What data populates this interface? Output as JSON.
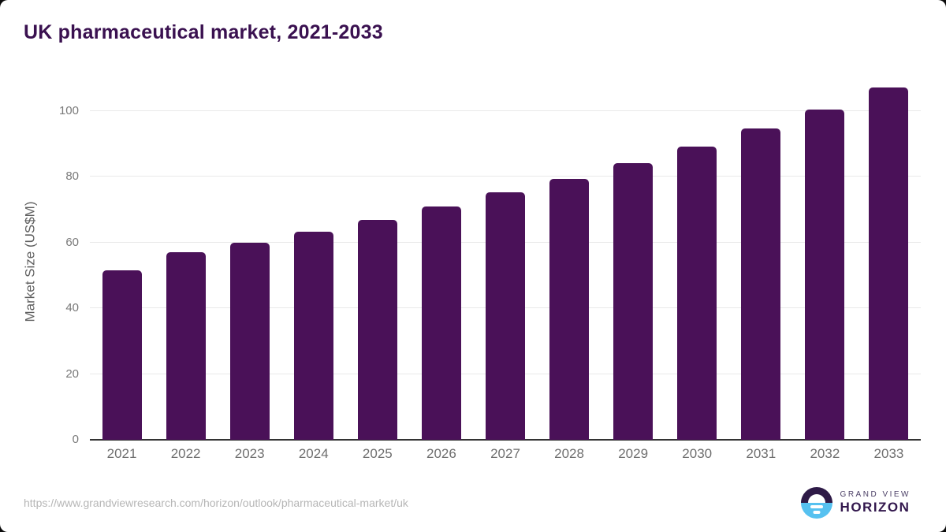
{
  "title": "UK pharmaceutical market, 2021-2033",
  "chart_data": {
    "type": "bar",
    "title": "UK pharmaceutical market, 2021-2033",
    "categories": [
      "2021",
      "2022",
      "2023",
      "2024",
      "2025",
      "2026",
      "2027",
      "2028",
      "2029",
      "2030",
      "2031",
      "2032",
      "2033"
    ],
    "values": [
      51.5,
      57.0,
      60.0,
      63.4,
      66.9,
      71.0,
      75.2,
      79.4,
      84.2,
      89.2,
      94.7,
      100.6,
      107.1
    ],
    "xlabel": "",
    "ylabel": "Market Size (US$M)",
    "ylim": [
      0,
      100
    ],
    "yticks": [
      0,
      20,
      40,
      60,
      80,
      100
    ],
    "grid": true,
    "legend": "none",
    "bar_color": "#4A1158"
  },
  "footer": {
    "source_url": "https://www.grandviewresearch.com/horizon/outlook/pharmaceutical-market/uk",
    "logo": {
      "top": "GRAND VIEW",
      "bottom": "HORIZON"
    }
  },
  "colors": {
    "bar": "#4A1158",
    "title": "#3A1150",
    "gridline": "#e9e9e9",
    "baseline": "#333333",
    "ytick_text": "#7a7a7a",
    "xtick_text": "#6e6e6e",
    "ylabel_text": "#606060",
    "url_text": "#b6b6b6",
    "logo_dark": "#2E1A47",
    "logo_blue": "#56C1F0"
  }
}
